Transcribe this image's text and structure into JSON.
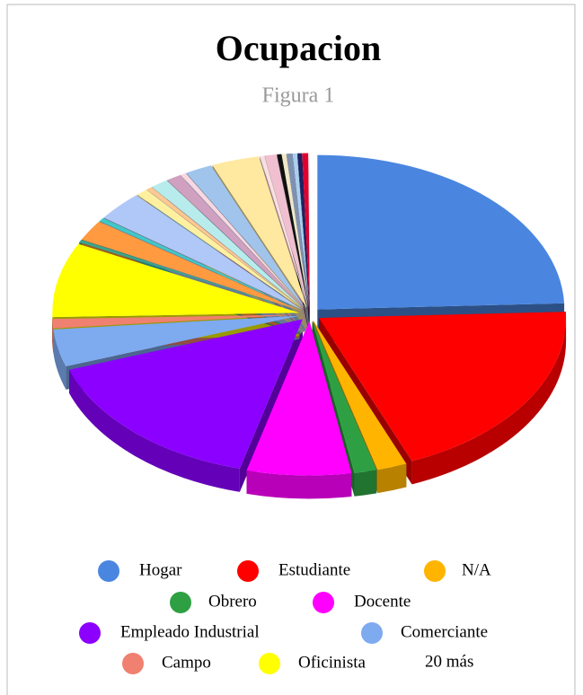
{
  "chart_data": {
    "type": "pie",
    "title": "Ocupacion",
    "subtitle": "Figura 1",
    "categories": [
      "Hogar",
      "Estudiante",
      "N/A",
      "Obrero",
      "Docente",
      "Empleado Industrial",
      "Comerciante",
      "Campo",
      "Oficinista",
      null,
      null,
      null,
      null,
      null,
      null,
      null,
      null,
      null,
      null,
      null,
      null,
      null,
      null,
      null,
      null,
      null,
      null,
      null,
      null
    ],
    "values": [
      25,
      20,
      2,
      1.5,
      7,
      16,
      4,
      1,
      8,
      0.3,
      2.2,
      0.4,
      3.2,
      0.8,
      0.4,
      1.2,
      1.0,
      0.4,
      1.8,
      3.2,
      0.3,
      0.8,
      0.3,
      0.3,
      0.4,
      0.3,
      0.3,
      0.4,
      0.1
    ],
    "colors": [
      "#4a86e0",
      "#ff0000",
      "#ffb400",
      "#2ea043",
      "#ff00ff",
      "#8b00ff",
      "#7eaaf0",
      "#f08070",
      "#ffff00",
      "#3aa58a",
      "#ff9a40",
      "#40c8c8",
      "#b0c8f8",
      "#fff0a0",
      "#ffc890",
      "#b8ecec",
      "#d0a0c0",
      "#f8d8e0",
      "#a0c4ec",
      "#ffe8a0",
      "#f8e0e0",
      "#f0c0d0",
      "#101010",
      "#f0e8c8",
      "#8090b0",
      "#a8d0f0",
      "#202060",
      "#e00030",
      "#f0f0f0"
    ],
    "legend_more": "20 más"
  }
}
